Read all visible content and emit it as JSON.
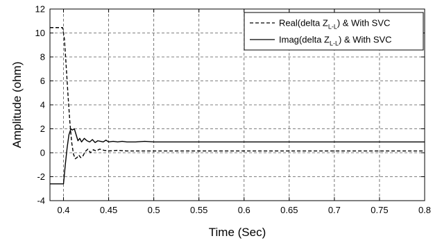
{
  "chart_data": {
    "type": "line",
    "title": "",
    "xlabel": "Time (Sec)",
    "ylabel": "Amplitude (ohm)",
    "xlim": [
      0.385,
      0.8
    ],
    "ylim": [
      -4,
      12
    ],
    "xticks": [
      0.4,
      0.45,
      0.5,
      0.55,
      0.6,
      0.65,
      0.7,
      0.75,
      0.8
    ],
    "xtick_labels": [
      "0.4",
      "0.45",
      "0.5",
      "0.55",
      "0.6",
      "0.65",
      "0.7",
      "0.75",
      "0.8"
    ],
    "yticks": [
      -4,
      -2,
      0,
      2,
      4,
      6,
      8,
      10,
      12
    ],
    "ytick_labels": [
      "-4",
      "-2",
      "0",
      "2",
      "4",
      "6",
      "8",
      "10",
      "12"
    ],
    "grid": true,
    "legend_position": "top-right",
    "series": [
      {
        "legend_main": "Real(delta Z",
        "legend_sub": "L-L",
        "legend_tail": ") & With SVC",
        "line_style": "dashed",
        "color": "#000000",
        "x": [
          0.385,
          0.399,
          0.401,
          0.403,
          0.405,
          0.407,
          0.409,
          0.411,
          0.413,
          0.415,
          0.417,
          0.419,
          0.421,
          0.424,
          0.427,
          0.43,
          0.433,
          0.436,
          0.44,
          0.445,
          0.45,
          0.46,
          0.47,
          0.48,
          0.5,
          0.55,
          0.6,
          0.7,
          0.8
        ],
        "y": [
          10.45,
          10.45,
          9.5,
          7.2,
          4.8,
          2.6,
          0.9,
          -0.1,
          -0.5,
          -0.4,
          -0.2,
          -0.4,
          -0.35,
          0.1,
          0.3,
          0.0,
          0.25,
          0.15,
          0.3,
          0.2,
          0.15,
          0.2,
          0.15,
          0.15,
          0.15,
          0.15,
          0.15,
          0.15,
          0.15
        ]
      },
      {
        "legend_main": "Imag(delta Z",
        "legend_sub": "L-L",
        "legend_tail": ") & With SVC",
        "line_style": "solid",
        "color": "#000000",
        "x": [
          0.385,
          0.4,
          0.402,
          0.404,
          0.406,
          0.408,
          0.41,
          0.412,
          0.414,
          0.416,
          0.418,
          0.42,
          0.423,
          0.426,
          0.429,
          0.432,
          0.435,
          0.438,
          0.441,
          0.444,
          0.447,
          0.45,
          0.455,
          0.46,
          0.465,
          0.47,
          0.48,
          0.49,
          0.5,
          0.6,
          0.7,
          0.8
        ],
        "y": [
          -2.6,
          -2.6,
          -1.0,
          0.4,
          1.5,
          1.95,
          1.9,
          2.0,
          1.5,
          1.0,
          1.2,
          0.9,
          1.2,
          1.0,
          0.9,
          1.1,
          0.85,
          1.0,
          0.95,
          0.9,
          1.05,
          0.9,
          0.95,
          0.9,
          0.95,
          0.9,
          0.9,
          0.95,
          0.9,
          0.9,
          0.9,
          0.9
        ]
      }
    ]
  }
}
